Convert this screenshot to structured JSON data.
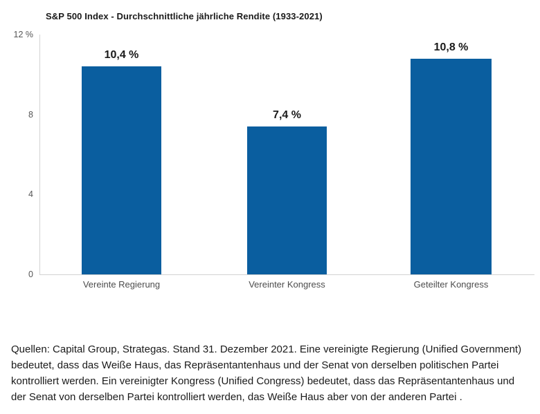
{
  "chart_data": {
    "type": "bar",
    "title": "S&P 500 Index - Durchschnittliche jährliche Rendite (1933-2021)",
    "categories": [
      "Vereinte Regierung",
      "Vereinter Kongress",
      "Geteilter Kongress"
    ],
    "values": [
      10.4,
      7.4,
      10.8
    ],
    "value_labels": [
      "10,4 %",
      "7,4 %",
      "10,8 %"
    ],
    "xlabel": "",
    "ylabel": "",
    "ylim": [
      0,
      12
    ],
    "y_ticks": [
      {
        "value": 12,
        "label": "12 %"
      },
      {
        "value": 8,
        "label": "8"
      },
      {
        "value": 4,
        "label": "4"
      },
      {
        "value": 0,
        "label": "0"
      }
    ],
    "grid": false,
    "legend": false,
    "bar_color": "#0a5e9f",
    "axis_color": "#d2d2d2"
  },
  "footer": {
    "text": "Quellen: Capital Group, Strategas. Stand 31. Dezember 2021. Eine vereinigte Regierung (Unified Government) bedeutet, dass das Weiße Haus, das Repräsentantenhaus und der Senat von derselben politischen Partei kontrolliert werden. Ein vereinigter Kongress (Unified Congress) bedeutet, dass das Repräsentantenhaus und der Senat von derselben Partei kontrolliert werden, das Weiße Haus aber von der anderen Partei ."
  }
}
